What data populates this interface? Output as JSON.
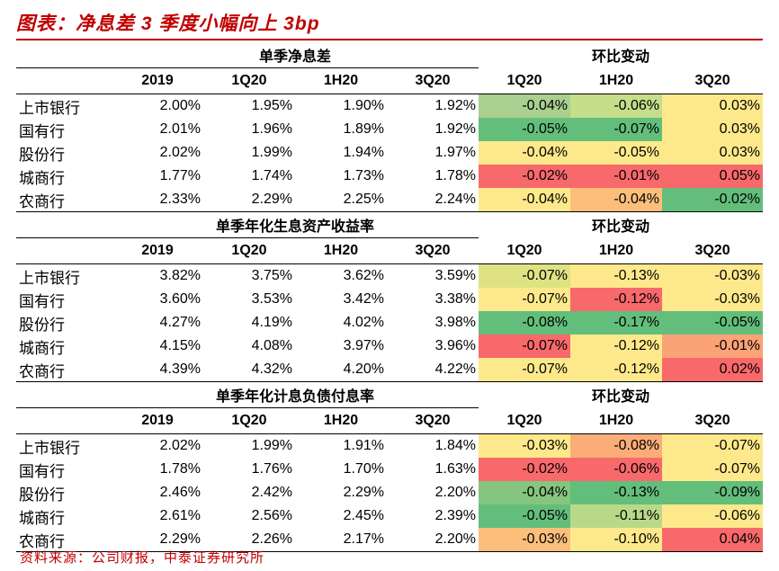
{
  "title": "图表：净息差 3 季度小幅向上 3bp",
  "source": "资料来源：公司财报，中泰证券研究所",
  "columns": [
    "2019",
    "1Q20",
    "1H20",
    "3Q20",
    "1Q20",
    "1H20",
    "3Q20"
  ],
  "change_label": "环比变动",
  "sections": [
    {
      "heading": "单季净息差",
      "rows": [
        {
          "name": "上市银行",
          "values": [
            "2.00%",
            "1.95%",
            "1.90%",
            "1.92%"
          ],
          "changes": [
            "-0.04%",
            "-0.06%",
            "0.03%"
          ],
          "colors": [
            "#a9d08e",
            "#c5de8a",
            "#fde98b"
          ]
        },
        {
          "name": "国有行",
          "values": [
            "2.01%",
            "1.96%",
            "1.89%",
            "1.92%"
          ],
          "changes": [
            "-0.05%",
            "-0.07%",
            "0.03%"
          ],
          "colors": [
            "#63be7b",
            "#63be7b",
            "#fde98b"
          ]
        },
        {
          "name": "股份行",
          "values": [
            "2.02%",
            "1.99%",
            "1.94%",
            "1.97%"
          ],
          "changes": [
            "-0.04%",
            "-0.05%",
            "0.03%"
          ],
          "colors": [
            "#fde98b",
            "#fde98b",
            "#fde98b"
          ]
        },
        {
          "name": "城商行",
          "values": [
            "1.77%",
            "1.74%",
            "1.73%",
            "1.78%"
          ],
          "changes": [
            "-0.02%",
            "-0.01%",
            "0.05%"
          ],
          "colors": [
            "#f8696b",
            "#f8696b",
            "#f8696b"
          ]
        },
        {
          "name": "农商行",
          "values": [
            "2.33%",
            "2.29%",
            "2.25%",
            "2.24%"
          ],
          "changes": [
            "-0.04%",
            "-0.04%",
            "-0.02%"
          ],
          "colors": [
            "#fde98b",
            "#fcbf7b",
            "#63be7b"
          ]
        }
      ]
    },
    {
      "heading": "单季年化生息资产收益率",
      "rows": [
        {
          "name": "上市银行",
          "values": [
            "3.82%",
            "3.75%",
            "3.62%",
            "3.59%"
          ],
          "changes": [
            "-0.07%",
            "-0.13%",
            "-0.03%"
          ],
          "colors": [
            "#dfe283",
            "#fde98b",
            "#fde98b"
          ]
        },
        {
          "name": "国有行",
          "values": [
            "3.60%",
            "3.53%",
            "3.42%",
            "3.38%"
          ],
          "changes": [
            "-0.07%",
            "-0.12%",
            "-0.03%"
          ],
          "colors": [
            "#fde98b",
            "#f8696b",
            "#fde98b"
          ]
        },
        {
          "name": "股份行",
          "values": [
            "4.27%",
            "4.19%",
            "4.02%",
            "3.98%"
          ],
          "changes": [
            "-0.08%",
            "-0.17%",
            "-0.05%"
          ],
          "colors": [
            "#63be7b",
            "#63be7b",
            "#63be7b"
          ]
        },
        {
          "name": "城商行",
          "values": [
            "4.15%",
            "4.08%",
            "3.97%",
            "3.96%"
          ],
          "changes": [
            "-0.07%",
            "-0.12%",
            "-0.01%"
          ],
          "colors": [
            "#f8696b",
            "#fde98b",
            "#fba276"
          ]
        },
        {
          "name": "农商行",
          "values": [
            "4.39%",
            "4.32%",
            "4.20%",
            "4.22%"
          ],
          "changes": [
            "-0.07%",
            "-0.12%",
            "0.02%"
          ],
          "colors": [
            "#fde98b",
            "#fde98b",
            "#f8696b"
          ]
        }
      ]
    },
    {
      "heading": "单季年化计息负债付息率",
      "rows": [
        {
          "name": "上市银行",
          "values": [
            "2.02%",
            "1.99%",
            "1.91%",
            "1.84%"
          ],
          "changes": [
            "-0.03%",
            "-0.08%",
            "-0.07%"
          ],
          "colors": [
            "#fde98b",
            "#fbad78",
            "#fde98b"
          ]
        },
        {
          "name": "国有行",
          "values": [
            "1.78%",
            "1.76%",
            "1.70%",
            "1.63%"
          ],
          "changes": [
            "-0.02%",
            "-0.06%",
            "-0.07%"
          ],
          "colors": [
            "#f8696b",
            "#f8696b",
            "#fde98b"
          ]
        },
        {
          "name": "股份行",
          "values": [
            "2.46%",
            "2.42%",
            "2.29%",
            "2.20%"
          ],
          "changes": [
            "-0.04%",
            "-0.13%",
            "-0.09%"
          ],
          "colors": [
            "#86c57f",
            "#63be7b",
            "#63be7b"
          ]
        },
        {
          "name": "城商行",
          "values": [
            "2.61%",
            "2.56%",
            "2.45%",
            "2.39%"
          ],
          "changes": [
            "-0.05%",
            "-0.11%",
            "-0.06%"
          ],
          "colors": [
            "#63be7b",
            "#b9d988",
            "#fde98b"
          ]
        },
        {
          "name": "农商行",
          "values": [
            "2.29%",
            "2.26%",
            "2.17%",
            "2.20%"
          ],
          "changes": [
            "-0.03%",
            "-0.10%",
            "0.04%"
          ],
          "colors": [
            "#fcbf7b",
            "#fde98b",
            "#f8696b"
          ]
        }
      ]
    }
  ]
}
